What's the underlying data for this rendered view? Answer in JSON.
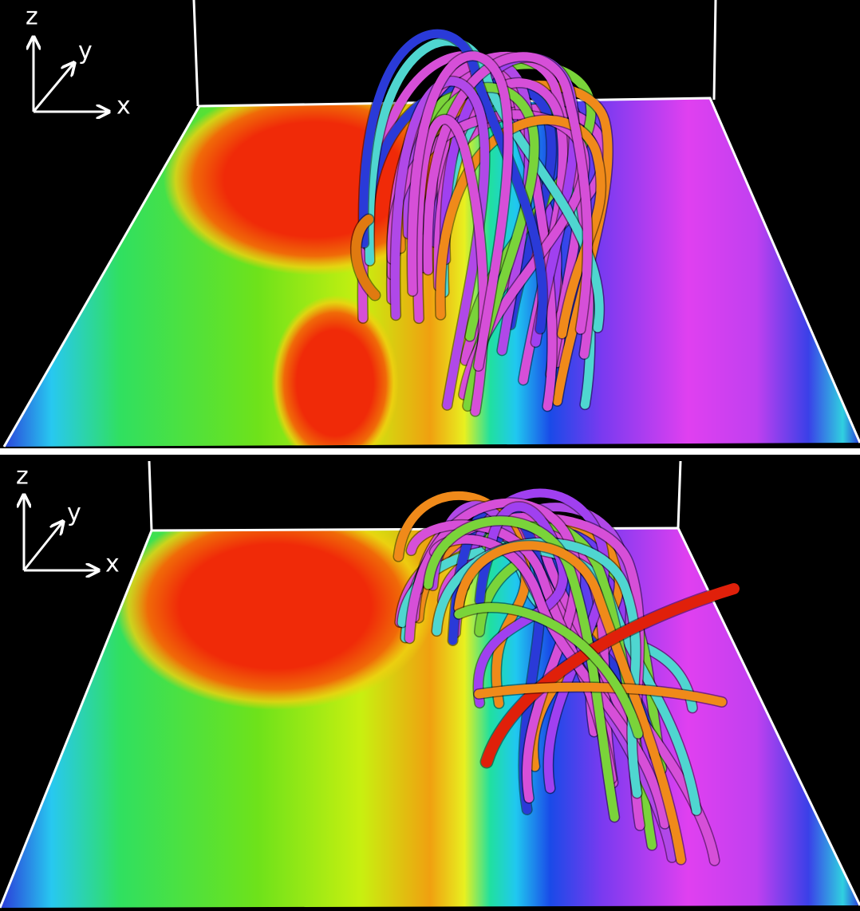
{
  "panels": [
    {
      "axis_labels": {
        "z": "z",
        "y": "y",
        "x": "x"
      }
    },
    {
      "axis_labels": {
        "z": "z",
        "y": "y",
        "x": "x"
      }
    }
  ]
}
